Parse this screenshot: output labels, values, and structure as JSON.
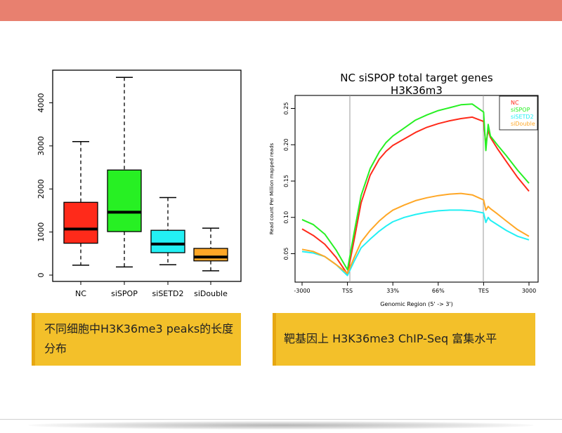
{
  "colors": {
    "header": "#e8806f",
    "caption_bg": "#f3c02a",
    "nc": "#ff2a1a",
    "sispop": "#27f023",
    "sisetd2": "#23f0f4",
    "sidouble": "#ffa726"
  },
  "captions": {
    "left": "不同细胞中H3K36me3 peaks的长度分布",
    "right": "靶基因上 H3K36me3 ChIP-Seq 富集水平"
  },
  "chart_data": [
    {
      "type": "box",
      "categories": [
        "NC",
        "siSPOP",
        "siSETD2",
        "siDouble"
      ],
      "colors": [
        "#ff2a1a",
        "#27f023",
        "#23f0f4",
        "#ffa726"
      ],
      "boxes": [
        {
          "whisker_low": 230,
          "q1": 740,
          "median": 1070,
          "q3": 1690,
          "whisker_high": 3100
        },
        {
          "whisker_low": 190,
          "q1": 1010,
          "median": 1460,
          "q3": 2440,
          "whisker_high": 4590
        },
        {
          "whisker_low": 240,
          "q1": 520,
          "median": 720,
          "q3": 1040,
          "whisker_high": 1800
        },
        {
          "whisker_low": 100,
          "q1": 330,
          "median": 420,
          "q3": 620,
          "whisker_high": 1090
        }
      ],
      "yticks": [
        "0",
        "1000",
        "2000",
        "3000",
        "4000"
      ],
      "ylim": [
        0,
        4600
      ]
    },
    {
      "type": "line",
      "title": "NC siSPOP total target genes",
      "subtitle": "H3K36m3",
      "xlabel": "Genomic Region (5' -> 3')",
      "ylabel": "Read count Per Million mapped reads",
      "xticks": [
        "-3000",
        "TSS",
        "33%",
        "66%",
        "TES",
        "3000"
      ],
      "yticks": [
        "0.05",
        "0.10",
        "0.15",
        "0.20",
        "0.25"
      ],
      "ylim": [
        0.015,
        0.265
      ],
      "x": [
        0,
        0.25,
        0.5,
        0.75,
        1,
        1.15,
        1.3,
        1.5,
        1.7,
        1.85,
        2,
        2.25,
        2.5,
        2.75,
        3,
        3.25,
        3.5,
        3.75,
        4,
        4.05,
        4.1,
        4.15,
        4.3,
        4.5,
        4.75,
        5
      ],
      "legend_position": "top-right",
      "series": [
        {
          "name": "NC",
          "color": "#ff2a1a",
          "values": [
            0.084,
            0.075,
            0.063,
            0.045,
            0.022,
            0.07,
            0.12,
            0.158,
            0.18,
            0.191,
            0.199,
            0.208,
            0.217,
            0.224,
            0.229,
            0.233,
            0.236,
            0.238,
            0.232,
            0.2,
            0.22,
            0.21,
            0.195,
            0.177,
            0.155,
            0.136
          ]
        },
        {
          "name": "siSPOP",
          "color": "#27f023",
          "values": [
            0.097,
            0.09,
            0.077,
            0.055,
            0.028,
            0.08,
            0.13,
            0.167,
            0.19,
            0.203,
            0.212,
            0.223,
            0.234,
            0.241,
            0.247,
            0.251,
            0.255,
            0.256,
            0.245,
            0.192,
            0.228,
            0.212,
            0.2,
            0.185,
            0.165,
            0.147
          ]
        },
        {
          "name": "siSETD2",
          "color": "#23f0f4",
          "values": [
            0.053,
            0.051,
            0.046,
            0.035,
            0.02,
            0.04,
            0.058,
            0.07,
            0.081,
            0.088,
            0.094,
            0.1,
            0.104,
            0.107,
            0.109,
            0.11,
            0.11,
            0.109,
            0.106,
            0.093,
            0.1,
            0.096,
            0.09,
            0.082,
            0.074,
            0.069
          ]
        },
        {
          "name": "siDouble",
          "color": "#ffa726",
          "values": [
            0.056,
            0.053,
            0.046,
            0.035,
            0.023,
            0.045,
            0.066,
            0.082,
            0.095,
            0.103,
            0.11,
            0.117,
            0.123,
            0.127,
            0.13,
            0.132,
            0.133,
            0.131,
            0.124,
            0.11,
            0.115,
            0.112,
            0.105,
            0.095,
            0.083,
            0.074
          ]
        }
      ]
    }
  ]
}
